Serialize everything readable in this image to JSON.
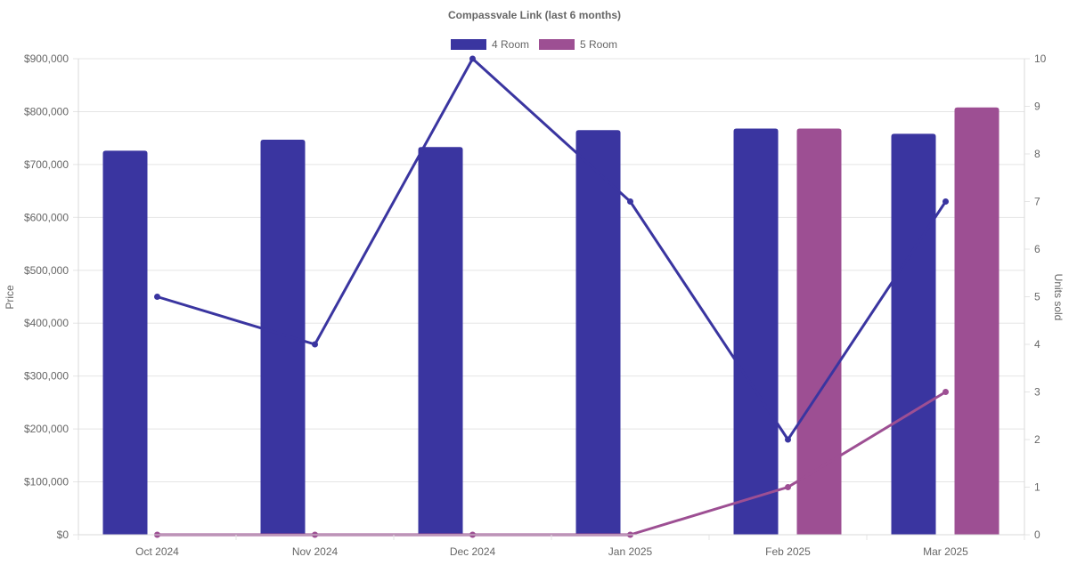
{
  "chart_data": {
    "type": "bar",
    "title": "Compassvale Link (last 6 months)",
    "categories": [
      "Oct 2024",
      "Nov 2024",
      "Dec 2024",
      "Jan 2025",
      "Feb 2025",
      "Mar 2025"
    ],
    "y_left": {
      "label": "Price",
      "range": [
        0,
        900000
      ],
      "ticks": [
        0,
        100000,
        200000,
        300000,
        400000,
        500000,
        600000,
        700000,
        800000,
        900000
      ],
      "tick_labels": [
        "$0",
        "$100,000",
        "$200,000",
        "$300,000",
        "$400,000",
        "$500,000",
        "$600,000",
        "$700,000",
        "$800,000",
        "$900,000"
      ]
    },
    "y_right": {
      "label": "Units sold",
      "range": [
        0,
        10
      ],
      "ticks": [
        0,
        1,
        2,
        3,
        4,
        5,
        6,
        7,
        8,
        9,
        10
      ],
      "tick_labels": [
        "0",
        "1",
        "2",
        "3",
        "4",
        "5",
        "6",
        "7",
        "8",
        "9",
        "10"
      ]
    },
    "legend": {
      "placement": "top-center",
      "entries": [
        "4 Room",
        "5 Room"
      ]
    },
    "series": [
      {
        "name": "4 Room",
        "color": "#3a35a0",
        "price": [
          726000,
          747000,
          733000,
          765000,
          768000,
          758000
        ],
        "units_sold": [
          5,
          4,
          10,
          7,
          2,
          7
        ]
      },
      {
        "name": "5 Room",
        "color": "#9d4f93",
        "price": [
          null,
          null,
          null,
          null,
          768000,
          808000
        ],
        "units_sold": [
          0,
          0,
          0,
          0,
          1,
          3
        ]
      }
    ],
    "grid": true
  }
}
